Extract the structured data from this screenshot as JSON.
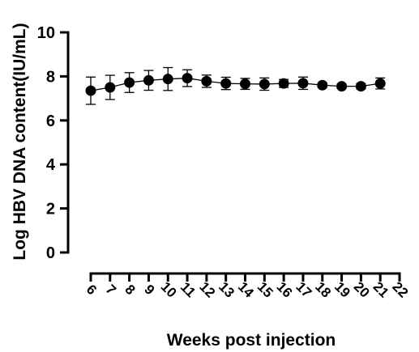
{
  "chart_data": {
    "type": "line",
    "xlabel": "Weeks post injection",
    "ylabel": "Log HBV DNA content(IU/mL)",
    "x_ticks": [
      "6",
      "7",
      "8",
      "9",
      "10",
      "11",
      "12",
      "13",
      "14",
      "15",
      "16",
      "17",
      "18",
      "19",
      "20",
      "21",
      "22"
    ],
    "y_ticks": [
      "0",
      "2",
      "4",
      "6",
      "8",
      "10"
    ],
    "ylim": [
      0,
      10
    ],
    "xlim": [
      6,
      22
    ],
    "grid": false,
    "legend": "none",
    "marker_color": "#000000",
    "series": [
      {
        "x": [
          6,
          7,
          8,
          9,
          10,
          11,
          12,
          13,
          14,
          15,
          16,
          17,
          18,
          19,
          20,
          21
        ],
        "y": [
          7.35,
          7.5,
          7.72,
          7.82,
          7.88,
          7.92,
          7.78,
          7.68,
          7.66,
          7.65,
          7.68,
          7.69,
          7.6,
          7.55,
          7.55,
          7.68
        ],
        "err": [
          0.62,
          0.55,
          0.45,
          0.45,
          0.52,
          0.38,
          0.28,
          0.28,
          0.25,
          0.28,
          0.18,
          0.28,
          0.1,
          0.1,
          0.12,
          0.25
        ]
      }
    ]
  }
}
